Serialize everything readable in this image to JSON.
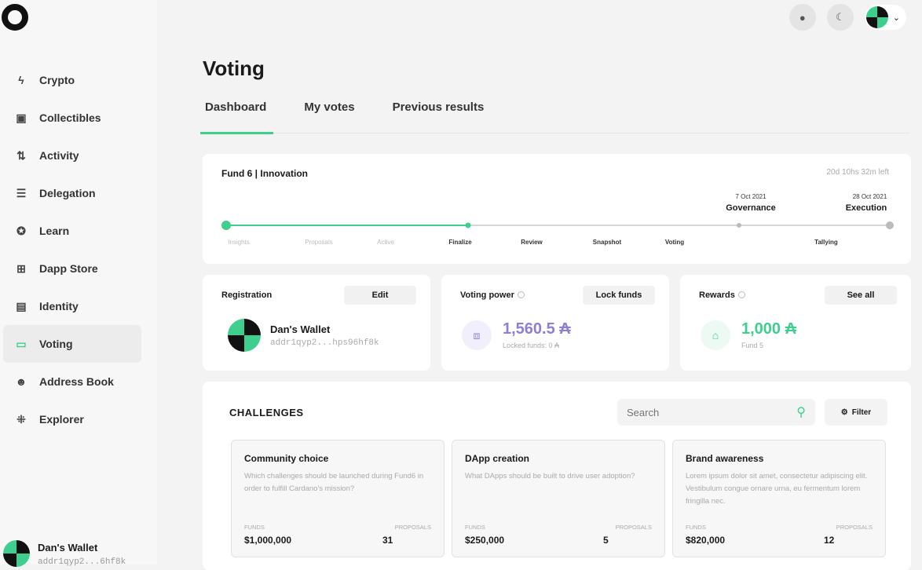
{
  "sidebar": {
    "items": [
      {
        "label": "Crypto",
        "icon": "bolt-icon",
        "glyph": "ϟ"
      },
      {
        "label": "Collectibles",
        "icon": "image-icon",
        "glyph": "▣"
      },
      {
        "label": "Activity",
        "icon": "arrows-updown-icon",
        "glyph": "⇅"
      },
      {
        "label": "Delegation",
        "icon": "database-icon",
        "glyph": "☰"
      },
      {
        "label": "Learn",
        "icon": "graduation-cap-icon",
        "glyph": "✪"
      },
      {
        "label": "Dapp Store",
        "icon": "grid-icon",
        "glyph": "⊞"
      },
      {
        "label": "Identity",
        "icon": "id-card-icon",
        "glyph": "▤"
      },
      {
        "label": "Voting",
        "icon": "ballot-icon",
        "glyph": "▭",
        "active": true
      },
      {
        "label": "Address Book",
        "icon": "users-icon",
        "glyph": "☻"
      },
      {
        "label": "Explorer",
        "icon": "explore-icon",
        "glyph": "⁜"
      }
    ],
    "wallet": {
      "name": "Dan's Wallet",
      "address": "addr1qyp2...6hf8k"
    }
  },
  "page": {
    "title": "Voting",
    "tabs": [
      "Dashboard",
      "My votes",
      "Previous results"
    ]
  },
  "fund": {
    "title": "Fund 6 | Innovation",
    "time_left": "20d 10hs 32m left",
    "phases": [
      "Insights",
      "Proposals",
      "Active",
      "Finalize",
      "Review",
      "Snapshot",
      "Voting",
      "Tallying"
    ],
    "current_phase": "Finalize",
    "milestones": [
      {
        "date": "7 Oct 2021",
        "label": "Governance"
      },
      {
        "date": "28 Oct 2021",
        "label": "Execution"
      }
    ]
  },
  "registration": {
    "title": "Registration",
    "button": "Edit",
    "wallet_name": "Dan's Wallet",
    "address": "addr1qyp2...hps96hf8k"
  },
  "voting_power": {
    "title": "Voting power",
    "button": "Lock funds",
    "value": "1,560.5 ₳",
    "sub": "Locked funds: 0 ₳"
  },
  "rewards": {
    "title": "Rewards",
    "button": "See all",
    "value": "1,000 ₳",
    "sub": "Fund 5"
  },
  "challenges": {
    "title": "CHALLENGES",
    "search_placeholder": "Search",
    "filter": "Filter",
    "funds_label": "FUNDS",
    "proposals_label": "PROPOSALS",
    "items": [
      {
        "title": "Community choice",
        "desc": "Which challenges should be launched during Fund6 in order to fulfill Cardano's mission?",
        "funds": "$1,000,000",
        "proposals": "31"
      },
      {
        "title": "DApp creation",
        "desc": "What DApps should be built to drive user adoption?",
        "funds": "$250,000",
        "proposals": "5"
      },
      {
        "title": "Brand awareness",
        "desc": "Lorem ipsum dolor sit amet, consectetur adipiscing elit. Vestibulum congue ornare urna, eu fermentum lorem fringilla nec.",
        "funds": "$820,000",
        "proposals": "12"
      }
    ]
  },
  "colors": {
    "accent": "#3ecf8e",
    "voting_power": "#8b7fd6"
  }
}
